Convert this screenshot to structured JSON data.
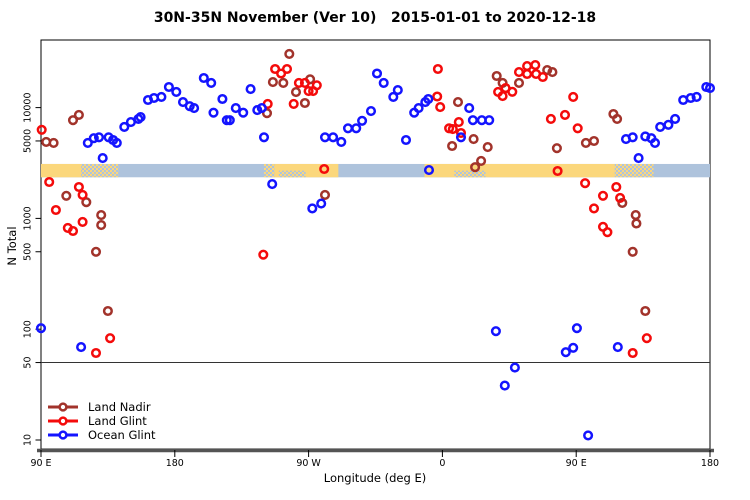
{
  "chart": {
    "title": "30N-35N November (Ver 10)   2015-01-01 to 2020-12-18"
  },
  "chart_data": {
    "type": "scatter",
    "title": "30N-35N November (Ver 10)   2015-01-01 to 2020-12-18",
    "xlabel": "Longitude (deg E)",
    "ylabel": "N Total",
    "x_axis": {
      "range": [
        90,
        540
      ],
      "tick_values": [
        90,
        180,
        270,
        360,
        450,
        540
      ],
      "tick_labels": [
        "90 E",
        "180",
        "90 W",
        "0",
        "90 E",
        "180"
      ],
      "note": "longitude wraps eastward: 90E to 180 to 90W to 0 to 90E to 180"
    },
    "y_axis": {
      "scale": "log10",
      "range": [
        9,
        41000
      ],
      "tick_values": [
        10,
        50,
        100,
        500,
        1000,
        5000,
        10000
      ],
      "tick_labels": [
        "10",
        "50",
        "100",
        "500",
        "1000",
        "5000",
        "10000"
      ]
    },
    "reference_line_value": 50,
    "grid": false,
    "legend_position": "bottom-left",
    "surface_strip": {
      "description": "land/ocean mask strip along 30N-35N",
      "value_top": 3100,
      "value_bottom": 2350,
      "ocean_color": "#aec3dc",
      "land_color": "#fbd77c",
      "segments": [
        {
          "from": 90,
          "to": 117,
          "type": "land"
        },
        {
          "from": 117,
          "to": 142,
          "type": "mixed"
        },
        {
          "from": 142,
          "to": 240,
          "type": "ocean"
        },
        {
          "from": 240,
          "to": 247,
          "type": "mixed"
        },
        {
          "from": 247,
          "to": 290,
          "type": "land"
        },
        {
          "from": 290,
          "to": 348,
          "type": "ocean"
        },
        {
          "from": 348,
          "to": 476,
          "type": "land"
        },
        {
          "from": 476,
          "to": 502,
          "type": "mixed"
        },
        {
          "from": 502,
          "to": 540,
          "type": "ocean"
        }
      ],
      "overlays": [
        {
          "from": 250,
          "to": 268,
          "type": "ocean-dither-bottom"
        },
        {
          "from": 368,
          "to": 389,
          "type": "ocean-dither-bottom"
        }
      ]
    },
    "series": [
      {
        "name": "Land Nadir",
        "color": "#a2332b",
        "points": [
          [
            111.5,
            7700
          ],
          [
            115.5,
            8600
          ],
          [
            93.5,
            4900
          ],
          [
            98.5,
            4800
          ],
          [
            107,
            1600
          ],
          [
            120.5,
            1400
          ],
          [
            130.5,
            1070
          ],
          [
            130.5,
            870
          ],
          [
            127,
            500
          ],
          [
            135,
            146
          ],
          [
            257,
            30500
          ],
          [
            246,
            17000
          ],
          [
            253,
            16700
          ],
          [
            271,
            18000
          ],
          [
            261.5,
            13800
          ],
          [
            267.5,
            11000
          ],
          [
            242,
            8900
          ],
          [
            281,
            1630
          ],
          [
            370.5,
            11200
          ],
          [
            381,
            5200
          ],
          [
            366.5,
            4500
          ],
          [
            390.5,
            4400
          ],
          [
            386,
            3300
          ],
          [
            382,
            2900
          ],
          [
            396.5,
            19300
          ],
          [
            400.5,
            16700
          ],
          [
            411.5,
            16700
          ],
          [
            430.5,
            21800
          ],
          [
            434,
            20900
          ],
          [
            456.5,
            4800
          ],
          [
            462,
            5000
          ],
          [
            437,
            4300
          ],
          [
            475,
            8750
          ],
          [
            477.5,
            7900
          ],
          [
            481,
            1380
          ],
          [
            490,
            1070
          ],
          [
            490.5,
            900
          ],
          [
            488,
            500
          ],
          [
            496.5,
            146
          ]
        ]
      },
      {
        "name": "Land Glint",
        "color": "#f40b0b",
        "points": [
          [
            90.5,
            6300
          ],
          [
            95.5,
            2130
          ],
          [
            115.5,
            1920
          ],
          [
            118,
            1630
          ],
          [
            100,
            1190
          ],
          [
            118,
            930
          ],
          [
            108,
            820
          ],
          [
            111.5,
            770
          ],
          [
            136.5,
            83
          ],
          [
            127,
            61
          ],
          [
            239.5,
            470
          ],
          [
            247.5,
            22300
          ],
          [
            255.5,
            22300
          ],
          [
            251.5,
            20300
          ],
          [
            263.5,
            16700
          ],
          [
            267.5,
            16700
          ],
          [
            270,
            14100
          ],
          [
            273,
            14100
          ],
          [
            275.5,
            15900
          ],
          [
            260,
            10800
          ],
          [
            242.5,
            10800
          ],
          [
            280.5,
            2790
          ],
          [
            357,
            22300
          ],
          [
            356.5,
            12600
          ],
          [
            358.5,
            10100
          ],
          [
            364.5,
            6500
          ],
          [
            371,
            7400
          ],
          [
            367,
            6400
          ],
          [
            372.5,
            5900
          ],
          [
            402.5,
            15000
          ],
          [
            397.5,
            13850
          ],
          [
            400.5,
            12700
          ],
          [
            411.5,
            20900
          ],
          [
            417,
            23700
          ],
          [
            422.5,
            24200
          ],
          [
            417,
            20100
          ],
          [
            423,
            20100
          ],
          [
            427.5,
            18900
          ],
          [
            407,
            13900
          ],
          [
            448,
            12500
          ],
          [
            442.5,
            8600
          ],
          [
            433,
            7900
          ],
          [
            451,
            6500
          ],
          [
            437.5,
            2680
          ],
          [
            456,
            2080
          ],
          [
            477,
            1920
          ],
          [
            479.5,
            1530
          ],
          [
            468,
            1600
          ],
          [
            462,
            1230
          ],
          [
            468,
            840
          ],
          [
            471,
            750
          ],
          [
            497.5,
            83
          ],
          [
            488,
            61
          ]
        ]
      },
      {
        "name": "Ocean Glint",
        "color": "#1414ff",
        "points": [
          [
            121.5,
            4800
          ],
          [
            125.5,
            5300
          ],
          [
            129,
            5400
          ],
          [
            135.5,
            5400
          ],
          [
            138.5,
            5100
          ],
          [
            141,
            4800
          ],
          [
            146,
            6700
          ],
          [
            150.5,
            7400
          ],
          [
            155.5,
            7900
          ],
          [
            157,
            8200
          ],
          [
            162,
            11700
          ],
          [
            166,
            12200
          ],
          [
            171,
            12500
          ],
          [
            176,
            15350
          ],
          [
            181,
            13850
          ],
          [
            185.5,
            11200
          ],
          [
            190,
            10300
          ],
          [
            193,
            9900
          ],
          [
            199.5,
            18500
          ],
          [
            204.5,
            16700
          ],
          [
            131.5,
            3500
          ],
          [
            90,
            102
          ],
          [
            117,
            69
          ],
          [
            231,
            14700
          ],
          [
            212,
            11950
          ],
          [
            206,
            9000
          ],
          [
            221,
            9900
          ],
          [
            226,
            9000
          ],
          [
            235.5,
            9500
          ],
          [
            238.5,
            9900
          ],
          [
            217,
            7700
          ],
          [
            215,
            7700
          ],
          [
            240,
            5400
          ],
          [
            245.5,
            2040
          ],
          [
            272.5,
            1230
          ],
          [
            278.5,
            1360
          ],
          [
            281,
            5400
          ],
          [
            286.5,
            5400
          ],
          [
            292,
            4900
          ],
          [
            296.5,
            6500
          ],
          [
            302,
            6500
          ],
          [
            306,
            7600
          ],
          [
            312,
            9300
          ],
          [
            316,
            20300
          ],
          [
            320.5,
            16700
          ],
          [
            327,
            12500
          ],
          [
            330,
            14400
          ],
          [
            335.5,
            5100
          ],
          [
            341,
            9000
          ],
          [
            344,
            9900
          ],
          [
            348.5,
            11200
          ],
          [
            350.5,
            11950
          ],
          [
            351,
            2730
          ],
          [
            372.5,
            5400
          ],
          [
            378,
            9900
          ],
          [
            380.5,
            7700
          ],
          [
            386.5,
            7700
          ],
          [
            391.5,
            7700
          ],
          [
            396,
            96
          ],
          [
            408.8,
            45
          ],
          [
            402,
            31
          ],
          [
            450.5,
            102
          ],
          [
            443,
            62
          ],
          [
            448,
            68
          ],
          [
            483.5,
            5200
          ],
          [
            488,
            5400
          ],
          [
            496.5,
            5500
          ],
          [
            500.5,
            5300
          ],
          [
            503,
            4800
          ],
          [
            492,
            3500
          ],
          [
            506.5,
            6700
          ],
          [
            512,
            7000
          ],
          [
            516.5,
            7900
          ],
          [
            522,
            11700
          ],
          [
            527,
            12200
          ],
          [
            531,
            12500
          ],
          [
            537.5,
            15350
          ],
          [
            540,
            15000
          ],
          [
            478,
            69
          ],
          [
            458,
            11
          ]
        ]
      }
    ]
  }
}
